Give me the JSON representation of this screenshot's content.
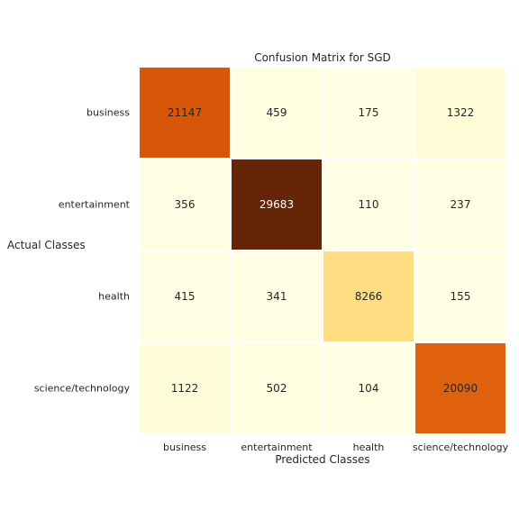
{
  "chart_data": {
    "type": "heatmap",
    "title": "Confusion Matrix for SGD",
    "xlabel": "Predicted Classes",
    "ylabel": "Actual Classes",
    "x_categories": [
      "business",
      "entertainment",
      "health",
      "science/technology"
    ],
    "y_categories": [
      "business",
      "entertainment",
      "health",
      "science/technology"
    ],
    "values": [
      [
        21147,
        459,
        175,
        1322
      ],
      [
        356,
        29683,
        110,
        237
      ],
      [
        415,
        341,
        8266,
        155
      ],
      [
        1122,
        502,
        104,
        20090
      ]
    ],
    "colormap": "YlOrBr",
    "colorbar": false,
    "grid": false
  }
}
